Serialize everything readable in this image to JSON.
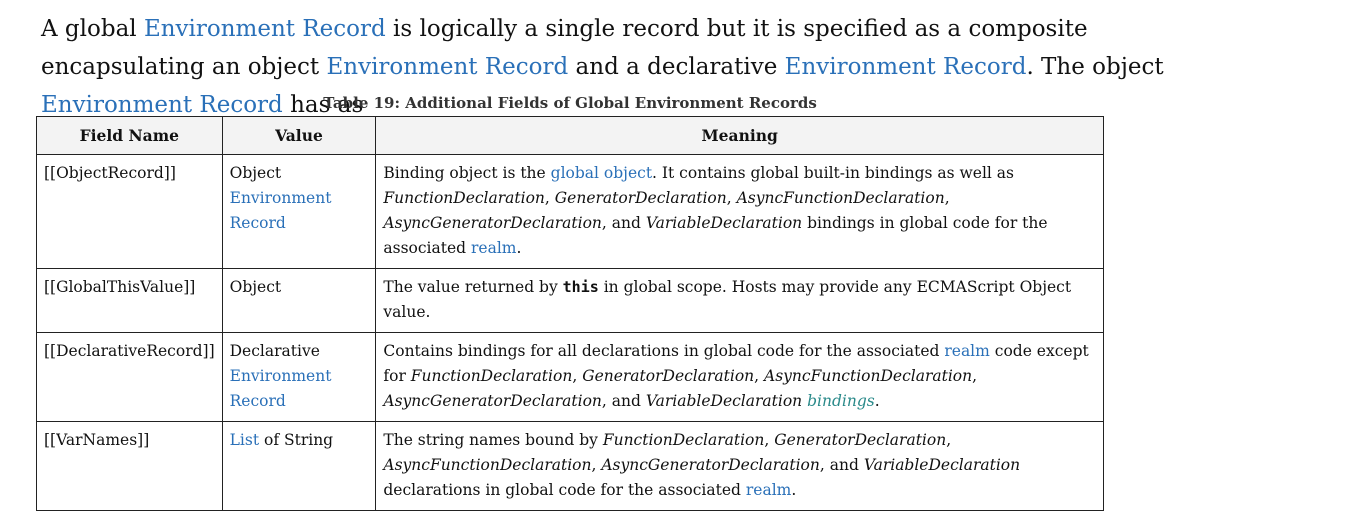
{
  "paragraph": {
    "t1": "A global ",
    "l1": "Environment Record",
    "t2": " is logically a single record but it is specified as a composite encapsulating an object ",
    "l2": "Environment Record",
    "t3": " and a declarative ",
    "l3": "Environment Record",
    "t4": ". The object ",
    "l4": "Environment Record",
    "t5": " has as"
  },
  "table": {
    "caption": "Table 19: Additional Fields of Global Environment Records",
    "headers": [
      "Field Name",
      "Value",
      "Meaning"
    ],
    "rows": [
      {
        "field": "[[ObjectRecord]]",
        "value_text": "Object",
        "value_link": "Environment Record",
        "m": [
          "Binding object is the ",
          "global object",
          ". It contains global built-in bindings as well as ",
          "FunctionDeclaration",
          ", ",
          "GeneratorDeclaration",
          ", ",
          "AsyncFunctionDeclaration",
          ", ",
          "AsyncGeneratorDeclaration",
          ", and ",
          "VariableDeclaration",
          " bindings in global code for the associated ",
          "realm",
          "."
        ]
      },
      {
        "field": "[[GlobalThisValue]]",
        "value_text": "Object",
        "m": [
          "The value returned by ",
          "this",
          " in global scope. Hosts may provide any ECMAScript Object value."
        ]
      },
      {
        "field": "[[DeclarativeRecord]]",
        "value_text": "Declarative",
        "value_link": "Environment Record",
        "m": [
          "Contains bindings for all declarations in global code for the associated ",
          "realm",
          " code except for ",
          "FunctionDeclaration",
          ", ",
          "GeneratorDeclaration",
          ", ",
          "AsyncFunctionDeclaration",
          ", ",
          "AsyncGeneratorDeclaration",
          ", and ",
          "VariableDeclaration",
          " ",
          "bindings",
          "."
        ]
      },
      {
        "field": "[[VarNames]]",
        "value_link": "List",
        "value_text": " of String",
        "m": [
          "The string names bound by ",
          "FunctionDeclaration",
          ", ",
          "GeneratorDeclaration",
          ", ",
          "AsyncFunctionDeclaration",
          ", ",
          "AsyncGeneratorDeclaration",
          ", and ",
          "VariableDeclaration",
          " declarations in global code for the associated ",
          "realm",
          "."
        ]
      }
    ]
  }
}
